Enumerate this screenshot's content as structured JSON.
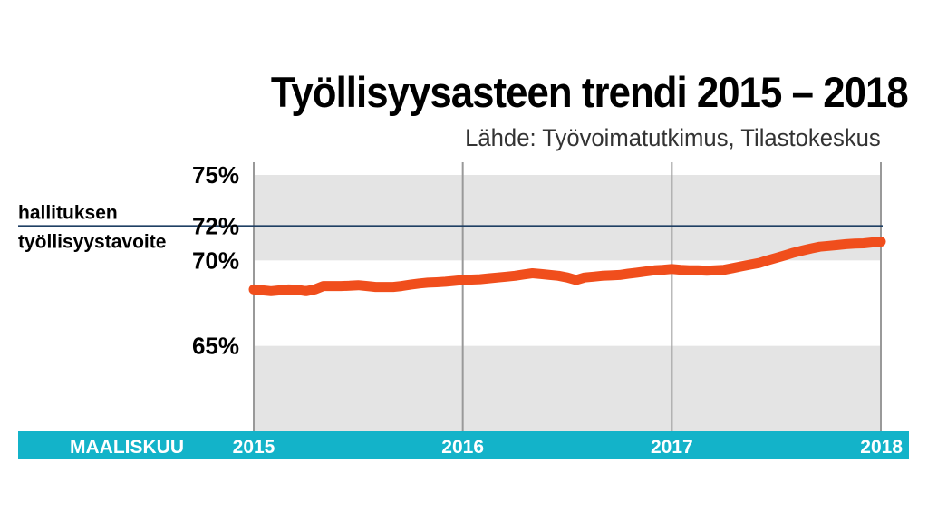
{
  "chart_data": {
    "type": "line",
    "title": "Työllisyysasteen trendi 2015 – 2018",
    "subtitle": "Lähde: Työvoimatutkimus, Tilastokeskus",
    "x_start_label": "MAALISKUU",
    "x_ticks": [
      "2015",
      "2016",
      "2017",
      "2018"
    ],
    "y_ticks": [
      "75%",
      "72%",
      "70%",
      "65%"
    ],
    "ylim": [
      60,
      75
    ],
    "grid": true,
    "target": {
      "value": 72,
      "label_lines": [
        "hallituksen",
        "työllisyystavoite"
      ]
    },
    "series": [
      {
        "color": "#f04e1c",
        "x": [
          2015.0,
          2015.042,
          2015.083,
          2015.125,
          2015.167,
          2015.208,
          2015.25,
          2015.292,
          2015.333,
          2015.375,
          2015.417,
          2015.458,
          2015.5,
          2015.542,
          2015.583,
          2015.625,
          2015.667,
          2015.708,
          2015.75,
          2015.792,
          2015.833,
          2015.875,
          2015.917,
          2015.958,
          2016.0,
          2016.042,
          2016.083,
          2016.125,
          2016.167,
          2016.208,
          2016.25,
          2016.292,
          2016.333,
          2016.375,
          2016.417,
          2016.458,
          2016.5,
          2016.542,
          2016.583,
          2016.625,
          2016.667,
          2016.708,
          2016.75,
          2016.792,
          2016.833,
          2016.875,
          2016.917,
          2016.958,
          2017.0,
          2017.042,
          2017.083,
          2017.125,
          2017.167,
          2017.208,
          2017.25,
          2017.292,
          2017.333,
          2017.375,
          2017.417,
          2017.458,
          2017.5,
          2017.542,
          2017.583,
          2017.625,
          2017.667,
          2017.708,
          2017.75,
          2017.792,
          2017.833,
          2017.875,
          2017.917,
          2017.958,
          2018.0
        ],
        "values": [
          68.3,
          68.25,
          68.2,
          68.25,
          68.3,
          68.28,
          68.2,
          68.3,
          68.5,
          68.5,
          68.5,
          68.52,
          68.55,
          68.5,
          68.45,
          68.45,
          68.45,
          68.5,
          68.58,
          68.65,
          68.7,
          68.72,
          68.75,
          68.8,
          68.85,
          68.88,
          68.9,
          68.95,
          69.0,
          69.05,
          69.1,
          69.18,
          69.25,
          69.2,
          69.15,
          69.1,
          69.0,
          68.85,
          69.0,
          69.05,
          69.1,
          69.12,
          69.15,
          69.22,
          69.28,
          69.35,
          69.42,
          69.45,
          69.5,
          69.45,
          69.42,
          69.42,
          69.4,
          69.42,
          69.45,
          69.55,
          69.65,
          69.75,
          69.85,
          70.0,
          70.15,
          70.3,
          70.45,
          70.58,
          70.7,
          70.8,
          70.85,
          70.9,
          70.95,
          70.98,
          71.0,
          71.05,
          71.1
        ]
      }
    ]
  }
}
